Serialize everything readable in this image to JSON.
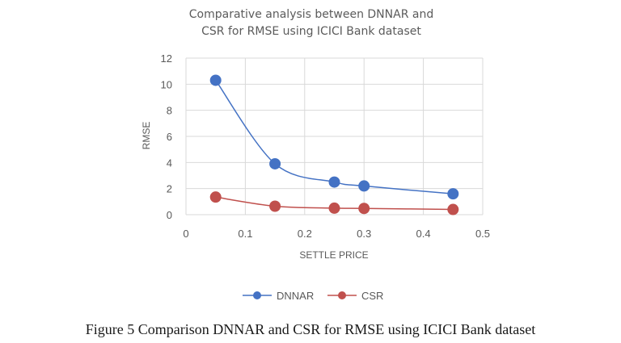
{
  "chart_data": {
    "type": "line",
    "title_lines": [
      "Comparative  analysis between  DNNAR and",
      "CSR for RMSE using ICICI Bank dataset"
    ],
    "xlabel": "SETTLE PRICE",
    "ylabel": "RMSE",
    "xlim": [
      0,
      0.5
    ],
    "ylim": [
      0,
      12
    ],
    "xticks": [
      "0",
      "0.1",
      "0.2",
      "0.3",
      "0.4",
      "0.5"
    ],
    "yticks": [
      "0",
      "2",
      "4",
      "6",
      "8",
      "10",
      "12"
    ],
    "grid": true,
    "legend_position": "bottom",
    "series": [
      {
        "name": "DNNAR",
        "color": "#4472c4",
        "x": [
          0.05,
          0.15,
          0.25,
          0.3,
          0.45
        ],
        "y": [
          10.3,
          3.9,
          2.5,
          2.2,
          1.6
        ]
      },
      {
        "name": "CSR",
        "color": "#c0504d",
        "x": [
          0.05,
          0.15,
          0.25,
          0.3,
          0.45
        ],
        "y": [
          1.35,
          0.65,
          0.5,
          0.48,
          0.4
        ]
      }
    ]
  },
  "caption": "Figure 5 Comparison DNNAR and CSR for RMSE using ICICI Bank dataset"
}
